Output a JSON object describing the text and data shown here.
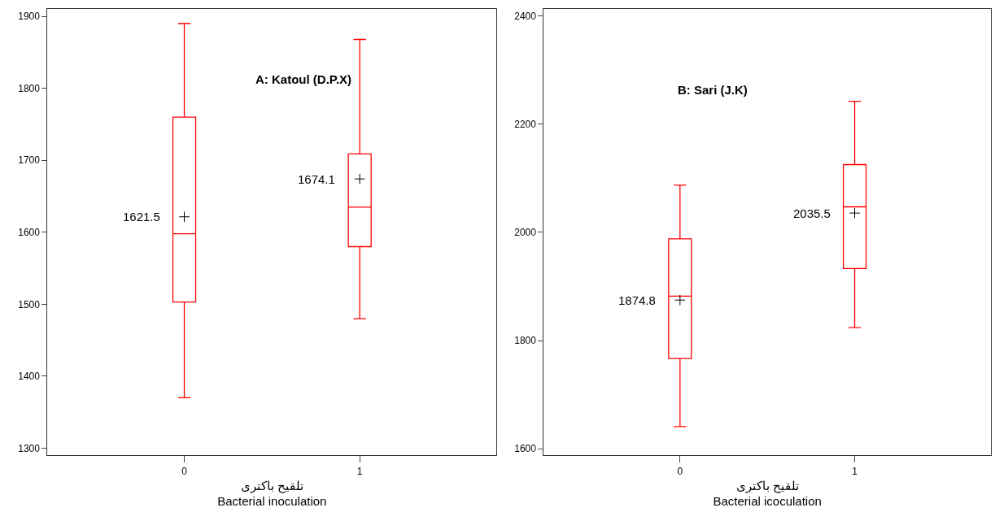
{
  "chart_data": [
    {
      "type": "box",
      "title": "A: Katoul (D.P.X)",
      "xlabel": "تلقیح باکتری\nBacterial inoculation",
      "categories": [
        "0",
        "1"
      ],
      "color": "#ff0000",
      "boxes": [
        {
          "low": 1370,
          "q1": 1503,
          "median": 1598,
          "q3": 1760,
          "high": 1890,
          "mean": 1621.5
        },
        {
          "low": 1480,
          "q1": 1580,
          "median": 1635,
          "q3": 1709,
          "high": 1868,
          "mean": 1674.1
        }
      ],
      "value_labels": [
        "1621.5",
        "1674.1"
      ],
      "ylim": [
        1290,
        1910
      ],
      "yticks": [
        1300,
        1400,
        1500,
        1600,
        1700,
        1800,
        1900
      ]
    },
    {
      "type": "box",
      "title": "B: Sari (J.K)",
      "xlabel": "تلقیح باکتری\nBacterial icoculation",
      "categories": [
        "0",
        "1"
      ],
      "color": "#ff0000",
      "boxes": [
        {
          "low": 1641,
          "q1": 1767,
          "median": 1882,
          "q3": 1988,
          "high": 2087,
          "mean": 1874.8
        },
        {
          "low": 1824,
          "q1": 1933,
          "median": 2047,
          "q3": 2125,
          "high": 2242,
          "mean": 2035.5
        }
      ],
      "value_labels": [
        "1874.8",
        "2035.5"
      ],
      "ylim": [
        1588,
        2412
      ],
      "yticks": [
        1600,
        1800,
        2000,
        2200,
        2400
      ]
    }
  ]
}
